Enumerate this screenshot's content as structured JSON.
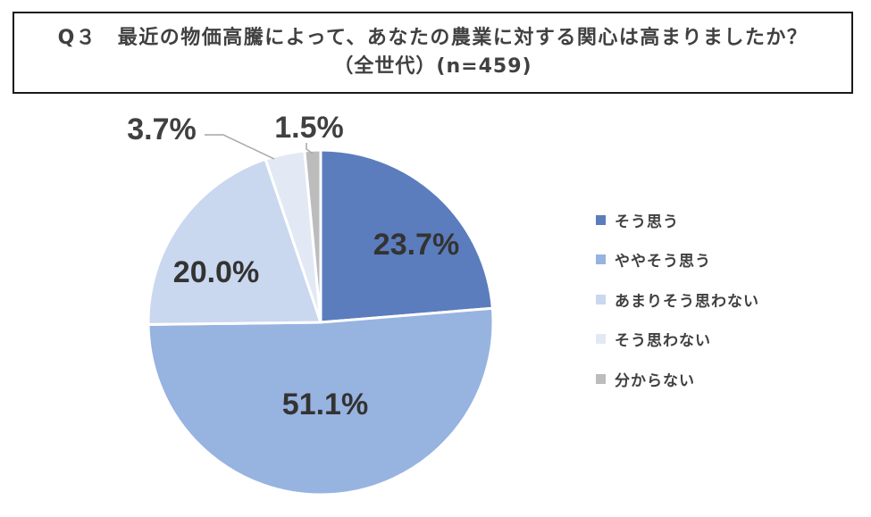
{
  "title": {
    "line1": "Q３　最近の物価高騰によって、あなたの農業に対する関心は高まりましたか？",
    "line2": "（全世代）(n=459)"
  },
  "chart_data": {
    "type": "pie",
    "title": "Q３　最近の物価高騰によって、あなたの農業に対する関心は高まりましたか？（全世代）(n=459)",
    "categories": [
      "そう思う",
      "ややそう思う",
      "あまりそう思わない",
      "そう思わない",
      "分からない"
    ],
    "values": [
      23.7,
      51.1,
      20.0,
      3.7,
      1.5
    ],
    "labels": [
      "23.7%",
      "51.1%",
      "20.0%",
      "3.7%",
      "1.5%"
    ],
    "colors": [
      "#5b7dbd",
      "#97b3e0",
      "#c9d7ef",
      "#e2e9f5",
      "#bcbcbc"
    ],
    "legend_position": "right"
  }
}
